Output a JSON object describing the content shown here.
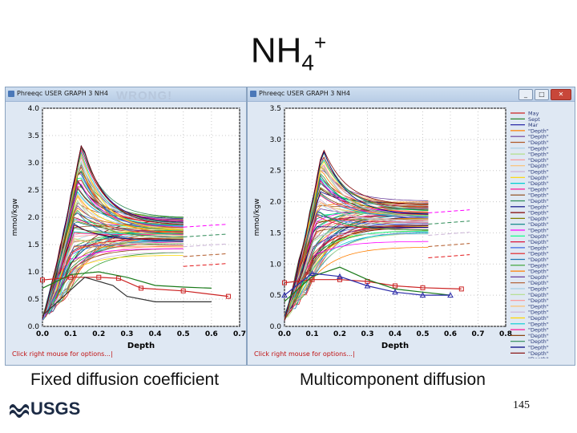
{
  "slide": {
    "title_main": "NH",
    "title_sub": "4",
    "title_sup": "+",
    "caption_left": "Fixed diffusion coefficient",
    "caption_right": "Multicomponent diffusion",
    "page_number": "145",
    "logo_text": "USGS"
  },
  "window_left": {
    "title": "Phreeqc USER GRAPH 3 NH4",
    "watermark": "WRONG!",
    "status": "Click right mouse for options...",
    "cursor": "|"
  },
  "window_right": {
    "title": "Phreeqc USER GRAPH 3 NH4",
    "status": "Click right mouse for options...",
    "cursor": "|",
    "min_label": "_",
    "max_label": "□",
    "close_label": "✕"
  },
  "colors": {
    "axis": "#000000",
    "plot_bg": "#ffffff",
    "window_bg": "#dfe8f3",
    "status_text": "#c01010"
  },
  "chart_data": [
    {
      "type": "line",
      "panel": "Fixed diffusion coefficient",
      "xlabel": "Depth",
      "ylabel": "mmol/kgw",
      "xlim": [
        0,
        0.7
      ],
      "ylim": [
        0,
        4.0
      ],
      "xticks": [
        "0.0",
        "0.1",
        "0.2",
        "0.3",
        "0.4",
        "0.5",
        "0.6",
        "0.7"
      ],
      "yticks": [
        "0.0",
        "0.5",
        "1.0",
        "1.5",
        "2.0",
        "2.5",
        "3.0",
        "3.5",
        "4.0"
      ],
      "grid": true,
      "series": [
        {
          "color": "#cc2222",
          "marker": "square",
          "x": [
            0.0,
            0.1,
            0.2,
            0.27,
            0.35,
            0.5,
            0.66
          ],
          "y": [
            0.85,
            0.9,
            0.9,
            0.88,
            0.7,
            0.65,
            0.55
          ]
        },
        {
          "color": "#1a7a1a",
          "marker": "none",
          "x": [
            0.0,
            0.1,
            0.2,
            0.3,
            0.4,
            0.5,
            0.6
          ],
          "y": [
            0.7,
            0.95,
            1.0,
            0.9,
            0.75,
            0.72,
            0.7
          ]
        },
        {
          "color": "#333333",
          "marker": "none",
          "x": [
            0.0,
            0.15,
            0.25,
            0.3,
            0.4,
            0.6
          ],
          "y": [
            0.2,
            0.9,
            0.75,
            0.55,
            0.45,
            0.45
          ]
        }
      ]
    },
    {
      "type": "line",
      "panel": "Multicomponent diffusion",
      "xlabel": "Depth",
      "ylabel": "mmol/kgw",
      "xlim": [
        0,
        0.8
      ],
      "ylim": [
        0,
        3.5
      ],
      "xticks": [
        "0.0",
        "0.1",
        "0.2",
        "0.3",
        "0.4",
        "0.5",
        "0.6",
        "0.7",
        "0.8"
      ],
      "yticks": [
        "0.0",
        "0.5",
        "1.0",
        "1.5",
        "2.0",
        "2.5",
        "3.0",
        "3.5"
      ],
      "grid": true,
      "legend_position": "right",
      "legend": [
        "May",
        "Sept",
        "Mar",
        "\"Depth\"",
        "\"Depth\"",
        "\"Depth\"",
        "\"Depth\"",
        "\"Depth\"",
        "\"Depth\"",
        "\"Depth\"",
        "\"Depth\"",
        "\"Depth\"",
        "\"Depth\"",
        "\"Depth\"",
        "\"Depth\"",
        "\"Depth\"",
        "\"Depth\"",
        "\"Depth\"",
        "\"Depth\"",
        "\"Depth\"",
        "\"Depth\"",
        "\"Depth\"",
        "\"Depth\"",
        "\"Depth\"",
        "\"Depth\"",
        "\"Depth\"",
        "\"Depth\"",
        "\"Depth\"",
        "\"Depth\"",
        "\"Depth\"",
        "\"Depth\"",
        "\"Depth\"",
        "\"Depth\"",
        "\"Depth\"",
        "\"Depth\"",
        "\"Depth\"",
        "\"Depth\"",
        "\"Depth\"",
        "\"Depth\"",
        "\"Depth\"",
        "\"Depth\"",
        "\"Depth\"",
        "\"Depth\""
      ],
      "series": [
        {
          "name": "May",
          "color": "#cc2222",
          "marker": "square",
          "x": [
            0.0,
            0.1,
            0.2,
            0.3,
            0.4,
            0.5,
            0.64
          ],
          "y": [
            0.7,
            0.75,
            0.75,
            0.72,
            0.65,
            0.62,
            0.6
          ]
        },
        {
          "name": "Sept",
          "color": "#1a7a1a",
          "marker": "none",
          "x": [
            0.0,
            0.1,
            0.2,
            0.3,
            0.4,
            0.5,
            0.6
          ],
          "y": [
            0.4,
            0.8,
            0.95,
            0.75,
            0.6,
            0.55,
            0.5
          ]
        },
        {
          "name": "Mar",
          "color": "#2a2aa8",
          "marker": "triangle",
          "x": [
            0.0,
            0.1,
            0.2,
            0.3,
            0.4,
            0.5,
            0.6
          ],
          "y": [
            0.5,
            0.85,
            0.8,
            0.65,
            0.55,
            0.5,
            0.5
          ]
        }
      ]
    }
  ]
}
